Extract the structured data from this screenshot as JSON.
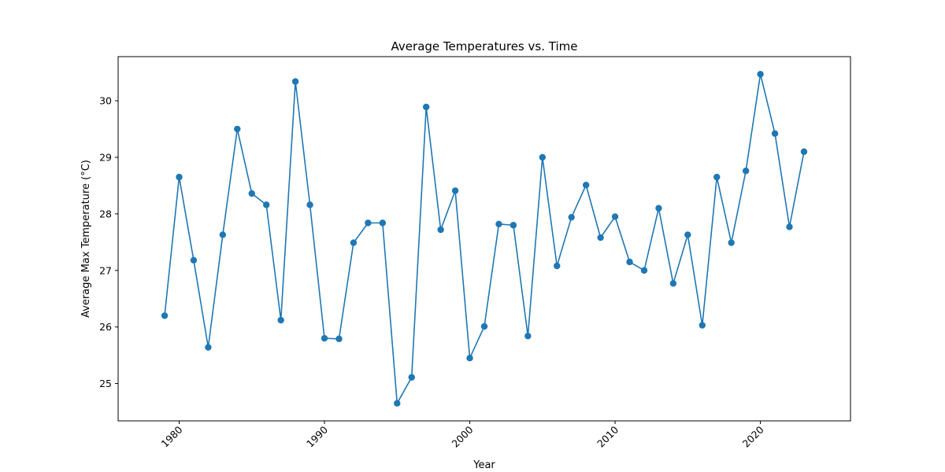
{
  "chart_data": {
    "type": "line",
    "title": "Average Temperatures vs. Time",
    "xlabel": "Year",
    "ylabel": "Average Max Temperature (°C)",
    "xlim": [
      1975.8,
      2026.2
    ],
    "ylim": [
      24.34,
      30.78
    ],
    "xticks": [
      1980,
      1990,
      2000,
      2010,
      2020
    ],
    "yticks": [
      25,
      26,
      27,
      28,
      29,
      30
    ],
    "grid": false,
    "markers": true,
    "color": "#1f77b4",
    "series": [
      {
        "x": [
          1979,
          1980,
          1981,
          1982,
          1983,
          1984,
          1985,
          1986,
          1987,
          1988,
          1989,
          1990,
          1991,
          1992,
          1993,
          1994,
          1995,
          1996,
          1997,
          1998,
          1999,
          2000,
          2001,
          2002,
          2003,
          2004,
          2005,
          2006,
          2007,
          2008,
          2009,
          2010,
          2011,
          2012,
          2013,
          2014,
          2015,
          2016,
          2017,
          2018,
          2019,
          2020,
          2021,
          2022,
          2023
        ],
        "y": [
          26.2,
          28.65,
          27.18,
          25.64,
          27.63,
          29.5,
          28.36,
          28.16,
          26.12,
          30.34,
          28.16,
          25.8,
          25.79,
          27.49,
          27.84,
          27.84,
          24.65,
          25.11,
          29.89,
          27.72,
          28.41,
          25.45,
          26.01,
          27.82,
          27.8,
          25.84,
          29.0,
          27.08,
          27.94,
          28.51,
          27.58,
          27.95,
          27.15,
          27.0,
          28.1,
          26.77,
          27.63,
          26.03,
          28.65,
          27.49,
          28.76,
          30.47,
          29.42,
          27.77,
          29.1
        ]
      }
    ]
  }
}
